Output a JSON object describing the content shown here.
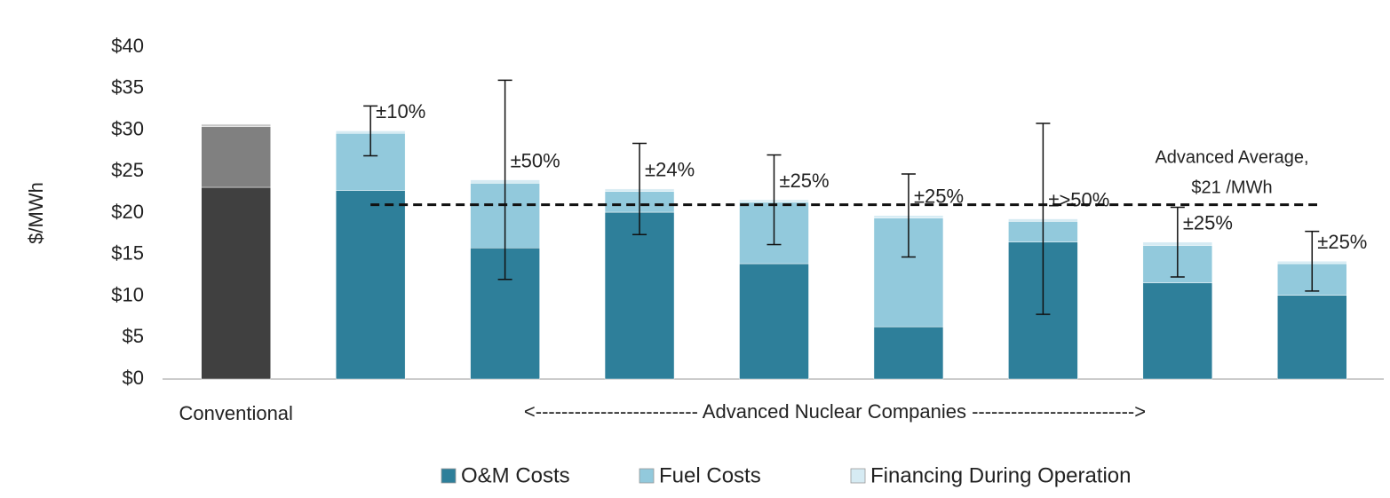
{
  "chart_data": {
    "type": "stacked_bar",
    "y_label": "$/MWh",
    "categories": [
      "Conventional",
      null,
      null,
      null,
      null,
      null,
      null,
      null,
      null
    ],
    "group_label": "<------------------------- Advanced Nuclear Companies ------------------------->",
    "series": [
      {
        "name": "O&M Costs",
        "color": "#2e7f9a",
        "colors": [
          "#404040",
          "#2e7f9a",
          "#2e7f9a",
          "#2e7f9a",
          "#2e7f9a",
          "#2e7f9a",
          "#2e7f9a",
          "#2e7f9a",
          "#2e7f9a"
        ],
        "values": [
          23.1,
          22.7,
          15.8,
          20.1,
          13.9,
          6.3,
          16.5,
          11.6,
          10.1
        ]
      },
      {
        "name": "Fuel Costs",
        "color": "#92c9dc",
        "colors": [
          "#808080",
          "#92c9dc",
          "#92c9dc",
          "#92c9dc",
          "#92c9dc",
          "#92c9dc",
          "#92c9dc",
          "#92c9dc",
          "#92c9dc"
        ],
        "values": [
          7.3,
          6.9,
          7.8,
          2.5,
          7.4,
          13.1,
          2.5,
          4.5,
          3.8
        ]
      },
      {
        "name": "Financing During Operation",
        "color": "#d6ebf3",
        "colors": [
          "#c8c8c8",
          "#d6ebf3",
          "#d6ebf3",
          "#d6ebf3",
          "#d6ebf3",
          "#d6ebf3",
          "#d6ebf3",
          "#d6ebf3",
          "#d6ebf3"
        ],
        "values": [
          0.3,
          0.3,
          0.4,
          0.3,
          0.3,
          0.3,
          0.3,
          0.4,
          0.3
        ]
      }
    ],
    "error_centers": [
      null,
      29.9,
      24.0,
      22.9,
      21.6,
      19.7,
      19.3,
      16.5,
      14.2
    ],
    "errors": [
      null,
      3.0,
      12.0,
      5.5,
      5.4,
      5.0,
      11.5,
      4.2,
      3.6
    ],
    "error_labels": [
      null,
      "±10%",
      "±50%",
      "±24%",
      "±25%",
      "±25%",
      "±>50%",
      "±25%",
      "±25%"
    ],
    "reference_line": {
      "value": 21,
      "label": [
        "Advanced Average,",
        "$21 /MWh"
      ]
    },
    "ylim": [
      0,
      40
    ],
    "yticks": [
      {
        "value": 0,
        "label": "$0"
      },
      {
        "value": 5,
        "label": "$5"
      },
      {
        "value": 10,
        "label": "$10"
      },
      {
        "value": 15,
        "label": "$15"
      },
      {
        "value": 20,
        "label": "$20"
      },
      {
        "value": 25,
        "label": "$25"
      },
      {
        "value": 30,
        "label": "$30"
      },
      {
        "value": 35,
        "label": "$35"
      },
      {
        "value": 40,
        "label": "$40"
      }
    ],
    "grid": false,
    "legend": "bottom"
  }
}
